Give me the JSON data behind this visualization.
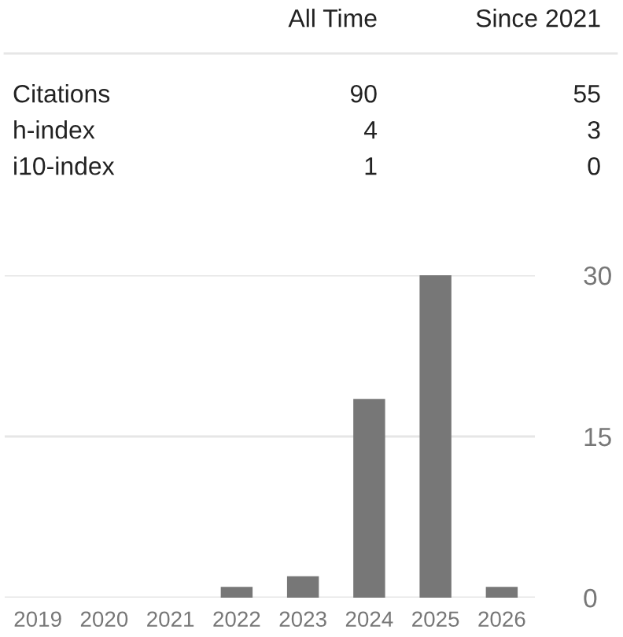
{
  "chart_data": [
    {
      "type": "other",
      "data_labels": true,
      "categories": [
        "Citations",
        "h-index",
        "i10-index"
      ],
      "series": [
        {
          "name": "All Time",
          "values": [
            90,
            4,
            1
          ]
        },
        {
          "name": "Since 2021",
          "values": [
            55,
            3,
            0
          ]
        }
      ]
    },
    {
      "type": "bar",
      "categories": [
        "2019",
        "2020",
        "2021",
        "2022",
        "2023",
        "2024",
        "2025",
        "2026"
      ],
      "values": [
        0,
        0,
        0,
        1,
        2,
        18.5,
        30,
        1
      ],
      "color": "#777777",
      "ylim": [
        0,
        30
      ],
      "yticks": [
        0,
        15,
        30
      ],
      "grid": "y"
    }
  ]
}
